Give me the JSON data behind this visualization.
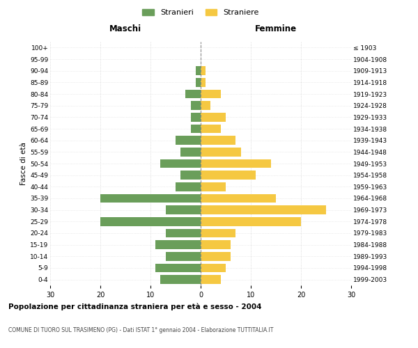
{
  "age_groups": [
    "0-4",
    "5-9",
    "10-14",
    "15-19",
    "20-24",
    "25-29",
    "30-34",
    "35-39",
    "40-44",
    "45-49",
    "50-54",
    "55-59",
    "60-64",
    "65-69",
    "70-74",
    "75-79",
    "80-84",
    "85-89",
    "90-94",
    "95-99",
    "100+"
  ],
  "birth_years": [
    "1999-2003",
    "1994-1998",
    "1989-1993",
    "1984-1988",
    "1979-1983",
    "1974-1978",
    "1969-1973",
    "1964-1968",
    "1959-1963",
    "1954-1958",
    "1949-1953",
    "1944-1948",
    "1939-1943",
    "1934-1938",
    "1929-1933",
    "1924-1928",
    "1919-1923",
    "1914-1918",
    "1909-1913",
    "1904-1908",
    "≤ 1903"
  ],
  "males": [
    8,
    9,
    7,
    9,
    7,
    20,
    7,
    20,
    5,
    4,
    8,
    4,
    5,
    2,
    2,
    2,
    3,
    1,
    1,
    0,
    0
  ],
  "females": [
    4,
    5,
    6,
    6,
    7,
    20,
    25,
    15,
    5,
    11,
    14,
    8,
    7,
    4,
    5,
    2,
    4,
    1,
    1,
    0,
    0
  ],
  "male_color": "#6a9e5a",
  "female_color": "#f5c842",
  "background_color": "#ffffff",
  "grid_color": "#cccccc",
  "title1": "Popolazione per cittadinanza straniera per età e sesso - 2004",
  "title2": "COMUNE DI TUORO SUL TRASIMENO (PG) - Dati ISTAT 1° gennaio 2004 - Elaborazione TUTTITALIA.IT",
  "xlabel_left": "Maschi",
  "xlabel_right": "Femmine",
  "ylabel_left": "Fasce di età",
  "legend_male": "Stranieri",
  "legend_female": "Straniere",
  "xlim": 30
}
